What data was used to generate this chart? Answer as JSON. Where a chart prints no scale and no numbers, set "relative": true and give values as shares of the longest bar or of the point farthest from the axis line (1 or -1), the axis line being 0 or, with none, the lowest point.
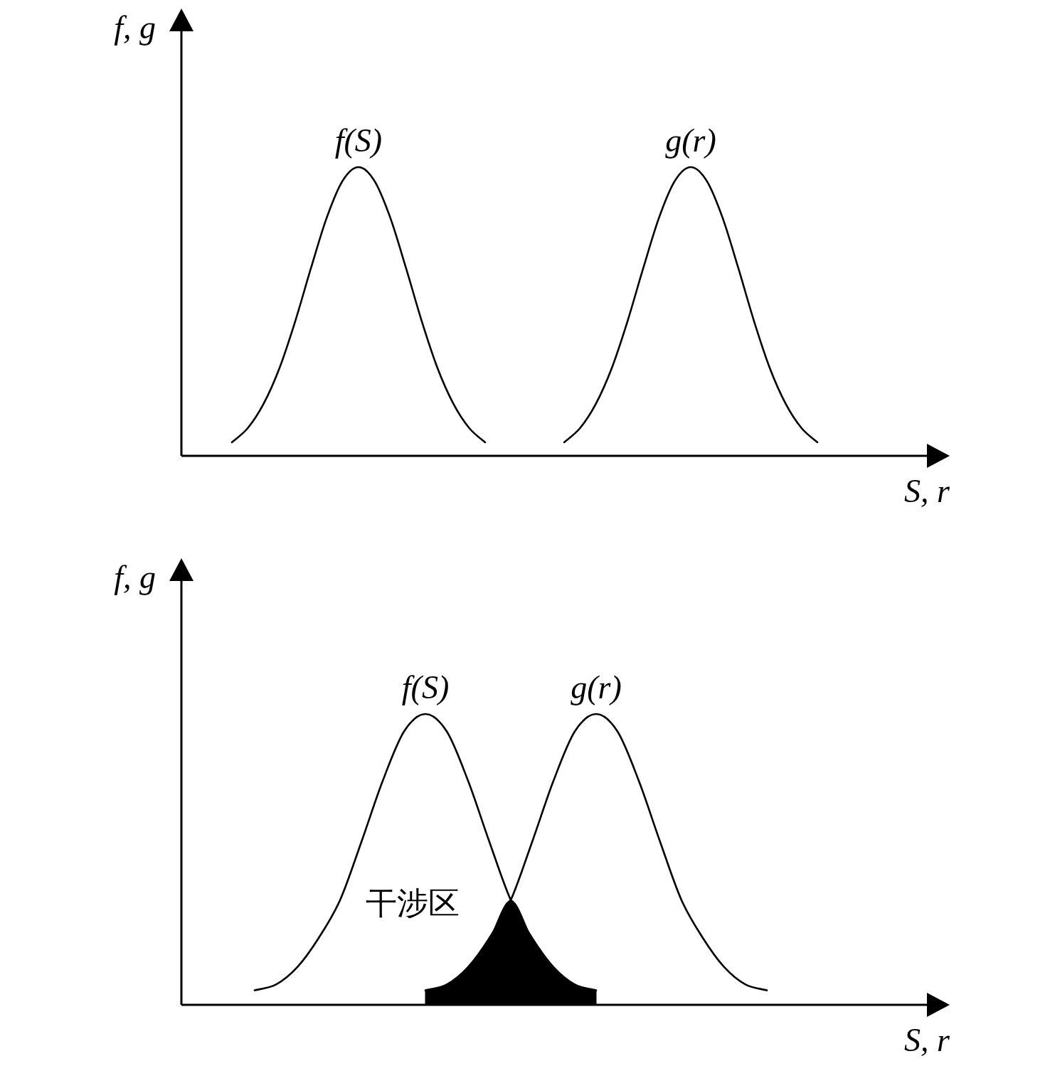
{
  "chart_data": [
    {
      "type": "line",
      "relative": true,
      "xlabel": "S, r",
      "ylabel": "f, g",
      "categories": [
        null,
        null,
        null,
        null,
        null,
        null,
        null,
        null,
        null,
        null,
        null,
        null,
        null,
        null,
        null,
        null,
        null,
        null,
        null,
        null,
        null,
        null,
        null,
        null,
        null,
        null,
        null,
        null,
        null,
        null,
        null,
        null,
        null,
        null,
        null,
        null,
        null,
        null
      ],
      "series": [
        {
          "name": "f(S)",
          "color": "#000000",
          "values": [
            0.047,
            0.096,
            0.18,
            0.303,
            0.466,
            0.651,
            0.826,
            0.953,
            1,
            0.953,
            0.826,
            0.651,
            0.466,
            0.303,
            0.18,
            0.096,
            0.047,
            null,
            null,
            null,
            null,
            null,
            null,
            null,
            null,
            null,
            null,
            null,
            null,
            null,
            null,
            null,
            null,
            null,
            null,
            null,
            null,
            null
          ]
        },
        {
          "name": "g(r)",
          "color": "#000000",
          "values": [
            null,
            null,
            null,
            null,
            null,
            null,
            null,
            null,
            null,
            null,
            null,
            null,
            null,
            null,
            null,
            null,
            null,
            null,
            null,
            null,
            null,
            0.047,
            0.096,
            0.18,
            0.303,
            0.466,
            0.651,
            0.826,
            0.953,
            1,
            0.953,
            0.826,
            0.651,
            0.466,
            0.303,
            0.18,
            0.096,
            0.047
          ]
        }
      ]
    },
    {
      "type": "line",
      "relative": true,
      "xlabel": "S, r",
      "ylabel": "f, g",
      "annotations": [
        "干涉区"
      ],
      "categories": [
        null,
        null,
        null,
        null,
        null,
        null,
        null,
        null,
        null,
        null,
        null,
        null,
        null,
        null,
        null,
        null,
        null,
        null,
        null,
        null,
        null,
        null,
        null,
        null,
        null
      ],
      "series": [
        {
          "name": "f(S)",
          "color": "#000000",
          "values": [
            0.05,
            0.07,
            0.13,
            0.23,
            0.36,
            0.56,
            0.77,
            0.94,
            1,
            0.94,
            0.77,
            0.56,
            0.36,
            0.23,
            0.13,
            0.07,
            0.05,
            null,
            null,
            null,
            null,
            null,
            null,
            null,
            null
          ]
        },
        {
          "name": "g(r)",
          "color": "#000000",
          "values": [
            null,
            null,
            null,
            null,
            null,
            null,
            null,
            null,
            0.05,
            0.07,
            0.13,
            0.23,
            0.36,
            0.56,
            0.77,
            0.94,
            1,
            0.94,
            0.77,
            0.56,
            0.36,
            0.23,
            0.13,
            0.07,
            0.05
          ]
        },
        {
          "type": "area",
          "color": "#000000",
          "values": [
            null,
            null,
            null,
            null,
            null,
            null,
            null,
            null,
            0.05,
            0.07,
            0.13,
            0.23,
            0.36,
            0.23,
            0.13,
            0.07,
            0.05,
            null,
            null,
            null,
            null,
            null,
            null,
            null,
            null
          ]
        }
      ]
    }
  ]
}
